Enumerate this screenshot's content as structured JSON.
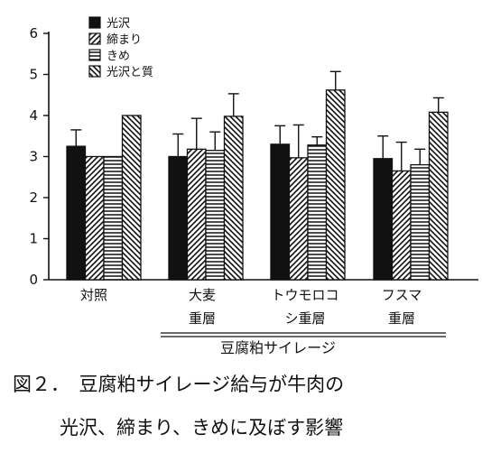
{
  "chart_data": {
    "type": "bar",
    "categories": [
      [
        "対照"
      ],
      [
        "大麦",
        "重層"
      ],
      [
        "トウモロコ",
        "シ重層"
      ],
      [
        "フスマ",
        "重層"
      ]
    ],
    "group_label": "豆腐粕サイレージ",
    "ylim": [
      0,
      6
    ],
    "yticks": [
      "0",
      "1",
      "2",
      "3",
      "4",
      "5",
      "6"
    ],
    "series": [
      {
        "name": "光沢",
        "pattern": "solid",
        "values": [
          3.25,
          3.0,
          3.3,
          2.95
        ],
        "errors": [
          0.4,
          0.55,
          0.45,
          0.55
        ]
      },
      {
        "name": "締まり",
        "pattern": "diag-up",
        "values": [
          3.0,
          3.18,
          2.97,
          2.65
        ],
        "errors": [
          0.0,
          0.75,
          0.8,
          0.7
        ]
      },
      {
        "name": "きめ",
        "pattern": "horizontal",
        "values": [
          3.0,
          3.15,
          3.28,
          2.8
        ],
        "errors": [
          0.0,
          0.45,
          0.2,
          0.38
        ]
      },
      {
        "name": "光沢と質",
        "pattern": "diag-down",
        "values": [
          4.0,
          3.98,
          4.62,
          4.08
        ],
        "errors": [
          0.0,
          0.55,
          0.45,
          0.35
        ]
      }
    ]
  },
  "caption": {
    "line1": "図２．　豆腐粕サイレージ給与が牛肉の",
    "line2": "光沢、締まり、きめに及ぼす影響"
  }
}
